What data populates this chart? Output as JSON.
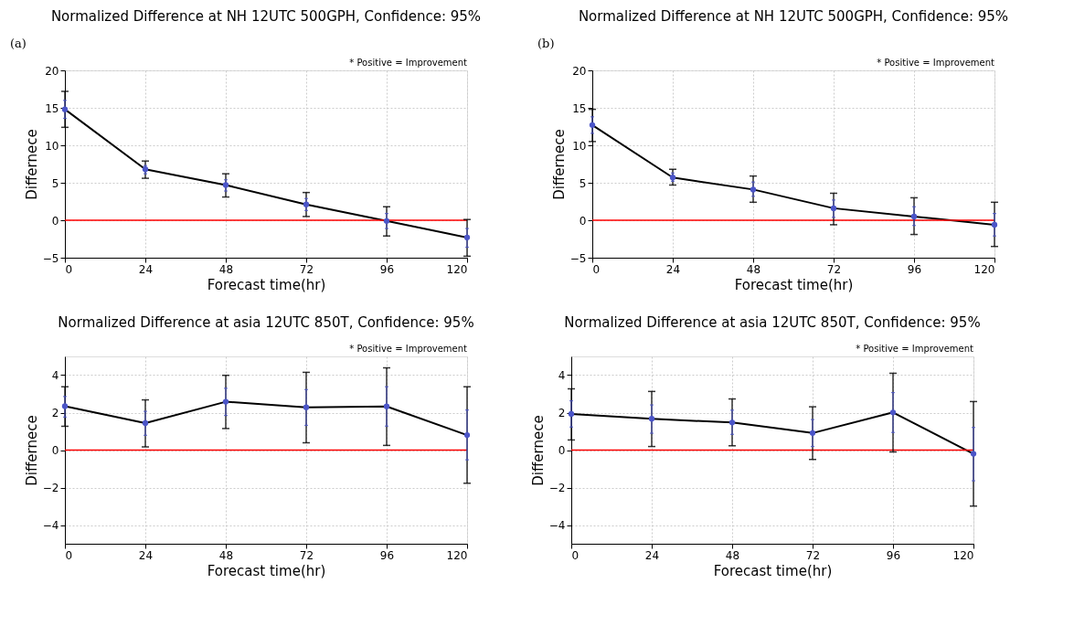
{
  "chart_data": [
    {
      "type": "line",
      "title": "Normalized Difference at NH 12UTC 500GPH, Confidence: 95%",
      "subtitle": "* Positive = Improvement",
      "xlabel": "Forecast time(hr)",
      "ylabel": "Differnece",
      "annotations": [
        "(a)"
      ],
      "x": [
        0,
        24,
        48,
        72,
        96,
        120
      ],
      "xlim": [
        0,
        120
      ],
      "xticks": [
        0,
        24,
        48,
        72,
        96,
        120
      ],
      "ylim": [
        -5,
        20
      ],
      "yticks": [
        -5,
        0,
        5,
        10,
        15,
        20
      ],
      "grid": true,
      "marker": "none",
      "ref_lines": [
        {
          "axis": "y",
          "value": 0,
          "color": "#ff0000"
        }
      ],
      "series": [
        {
          "color": "#000000",
          "values": [
            14.8,
            6.8,
            4.7,
            2.1,
            -0.1,
            -2.3
          ],
          "errors": [
            [
              12.4,
              17.2
            ],
            [
              5.6,
              7.9
            ],
            [
              3.1,
              6.2
            ],
            [
              0.5,
              3.7
            ],
            [
              -2.1,
              1.8
            ],
            [
              -4.8,
              0.1
            ]
          ]
        },
        {
          "type": "scatter",
          "marker": "circle",
          "color": "#4b55c8",
          "values": [
            14.8,
            6.8,
            4.7,
            2.1,
            -0.1,
            -2.3
          ],
          "errors": [
            [
              13.6,
              16.0
            ],
            [
              6.2,
              7.3
            ],
            [
              3.9,
              5.4
            ],
            [
              1.3,
              2.9
            ],
            [
              -1.1,
              0.9
            ],
            [
              -3.6,
              -1.1
            ]
          ]
        }
      ]
    },
    {
      "type": "line",
      "title": "Normalized Difference at NH 12UTC 500GPH, Confidence: 95%",
      "subtitle": "* Positive = Improvement",
      "xlabel": "Forecast time(hr)",
      "ylabel": "Differnece",
      "annotations": [
        "(b)"
      ],
      "x": [
        0,
        24,
        48,
        72,
        96,
        120
      ],
      "xlim": [
        0,
        120
      ],
      "xticks": [
        0,
        24,
        48,
        72,
        96,
        120
      ],
      "ylim": [
        -5,
        20
      ],
      "yticks": [
        -5,
        0,
        5,
        10,
        15,
        20
      ],
      "grid": true,
      "marker": "none",
      "ref_lines": [
        {
          "axis": "y",
          "value": 0,
          "color": "#ff0000"
        }
      ],
      "series": [
        {
          "color": "#000000",
          "values": [
            12.7,
            5.7,
            4.1,
            1.6,
            0.5,
            -0.6
          ],
          "errors": [
            [
              10.5,
              14.8
            ],
            [
              4.7,
              6.8
            ],
            [
              2.4,
              5.9
            ],
            [
              -0.6,
              3.6
            ],
            [
              -1.9,
              3.0
            ],
            [
              -3.5,
              2.4
            ]
          ]
        },
        {
          "type": "scatter",
          "marker": "circle",
          "color": "#4b55c8",
          "values": [
            12.7,
            5.7,
            4.1,
            1.6,
            0.5,
            -0.6
          ],
          "errors": [
            [
              11.6,
              13.8
            ],
            [
              5.2,
              6.3
            ],
            [
              3.2,
              5.1
            ],
            [
              0.4,
              2.7
            ],
            [
              -0.7,
              1.8
            ],
            [
              -2.1,
              0.9
            ]
          ]
        }
      ]
    },
    {
      "type": "line",
      "title": "Normalized Difference at asia 12UTC 850T, Confidence: 95%",
      "subtitle": "* Positive = Improvement",
      "xlabel": "Forecast time(hr)",
      "ylabel": "Differnece",
      "x": [
        0,
        24,
        48,
        72,
        96,
        120
      ],
      "xlim": [
        0,
        120
      ],
      "xticks": [
        0,
        24,
        48,
        72,
        96,
        120
      ],
      "ylim": [
        -5,
        5
      ],
      "yticks": [
        -4,
        -2,
        0,
        2,
        4
      ],
      "grid": true,
      "marker": "none",
      "ref_lines": [
        {
          "axis": "y",
          "value": 0,
          "color": "#ff0000"
        }
      ],
      "series": [
        {
          "color": "#000000",
          "values": [
            2.34,
            1.44,
            2.58,
            2.28,
            2.33,
            0.8
          ],
          "errors": [
            [
              1.27,
              3.38
            ],
            [
              0.17,
              2.68
            ],
            [
              1.15,
              3.99
            ],
            [
              0.39,
              4.15
            ],
            [
              0.25,
              4.39
            ],
            [
              -1.77,
              3.38
            ]
          ]
        },
        {
          "type": "scatter",
          "marker": "circle",
          "color": "#4b55c8",
          "values": [
            2.34,
            1.44,
            2.58,
            2.28,
            2.33,
            0.8
          ],
          "errors": [
            [
              1.76,
              2.86
            ],
            [
              0.79,
              2.07
            ],
            [
              1.85,
              3.3
            ],
            [
              1.32,
              3.23
            ],
            [
              1.28,
              3.38
            ],
            [
              -0.52,
              2.14
            ]
          ]
        }
      ]
    },
    {
      "type": "line",
      "title": "Normalized Difference at asia 12UTC 850T, Confidence: 95%",
      "subtitle": "* Positive = Improvement",
      "xlabel": "Forecast time(hr)",
      "ylabel": "Differnece",
      "x": [
        0,
        24,
        48,
        72,
        96,
        120
      ],
      "xlim": [
        0,
        120
      ],
      "xticks": [
        0,
        24,
        48,
        72,
        96,
        120
      ],
      "ylim": [
        -5,
        5
      ],
      "yticks": [
        -4,
        -2,
        0,
        2,
        4
      ],
      "grid": true,
      "marker": "none",
      "ref_lines": [
        {
          "axis": "y",
          "value": 0,
          "color": "#ff0000"
        }
      ],
      "series": [
        {
          "color": "#000000",
          "values": [
            1.93,
            1.67,
            1.47,
            0.91,
            2.01,
            -0.2
          ],
          "errors": [
            [
              0.54,
              3.27
            ],
            [
              0.19,
              3.13
            ],
            [
              0.23,
              2.73
            ],
            [
              -0.5,
              2.31
            ],
            [
              -0.1,
              4.1
            ],
            [
              -2.99,
              2.59
            ]
          ]
        },
        {
          "type": "scatter",
          "marker": "circle",
          "color": "#4b55c8",
          "values": [
            1.93,
            1.67,
            1.47,
            0.91,
            2.01,
            -0.2
          ],
          "errors": [
            [
              1.23,
              2.63
            ],
            [
              0.9,
              2.41
            ],
            [
              0.84,
              2.13
            ],
            [
              0.19,
              1.63
            ],
            [
              0.94,
              3.07
            ],
            [
              -1.64,
              1.21
            ]
          ]
        }
      ]
    }
  ]
}
